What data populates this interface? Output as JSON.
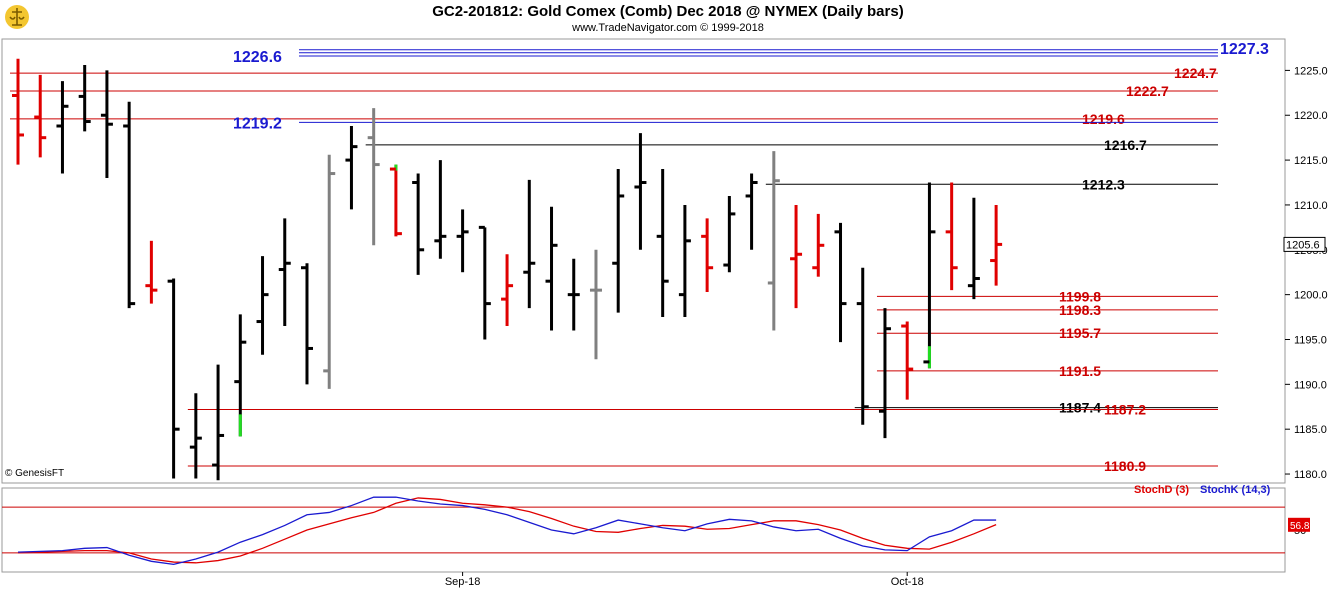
{
  "header": {
    "title": "GC2-201812:  Gold Comex (Comb) Dec 2018 @ NYMEX  (Daily bars)",
    "subtitle": "www.TradeNavigator.com © 1999-2018"
  },
  "credit": "© GenesisFT",
  "colors": {
    "up": "#000000",
    "down": "#e00000",
    "neutral": "#808080",
    "highlight": "#22dd22",
    "stochD": "#e00000",
    "stochK": "#1a1ad0",
    "level_red": "#cc0000",
    "level_blue": "#1a1ad0"
  },
  "chart_data": [
    {
      "type": "ohlc",
      "title": "GC2-201812:  Gold Comex (Comb) Dec 2018 @ NYMEX  (Daily bars)",
      "ylim": [
        1179,
        1228.5
      ],
      "y_ticks": [
        "1180.0",
        "1185.0",
        "1190.0",
        "1195.0",
        "1200.0",
        "1205.0",
        "1210.0",
        "1215.0",
        "1220.0",
        "1225.0"
      ],
      "x_labels": [
        {
          "label": "Sep-18",
          "bar": 20
        },
        {
          "label": "Oct-18",
          "bar": 40
        }
      ],
      "last_price": "1205.6",
      "bars": [
        {
          "o": 1222.2,
          "h": 1226.3,
          "l": 1214.5,
          "c": 1217.8,
          "color": "down"
        },
        {
          "o": 1219.8,
          "h": 1224.5,
          "l": 1215.3,
          "c": 1217.5,
          "color": "down"
        },
        {
          "o": 1218.8,
          "h": 1223.8,
          "l": 1213.5,
          "c": 1221.0,
          "color": "up"
        },
        {
          "o": 1222.1,
          "h": 1225.6,
          "l": 1218.2,
          "c": 1219.3,
          "color": "up"
        },
        {
          "o": 1220.0,
          "h": 1225.0,
          "l": 1213.0,
          "c": 1219.0,
          "color": "up"
        },
        {
          "o": 1218.8,
          "h": 1221.5,
          "l": 1198.5,
          "c": 1199.0,
          "color": "up"
        },
        {
          "o": 1201.0,
          "h": 1206.0,
          "l": 1199.0,
          "c": 1200.5,
          "color": "down"
        },
        {
          "o": 1201.5,
          "h": 1201.8,
          "l": 1179.5,
          "c": 1185.0,
          "color": "up"
        },
        {
          "o": 1183.0,
          "h": 1189.0,
          "l": 1179.5,
          "c": 1184.0,
          "color": "up"
        },
        {
          "o": 1181.0,
          "h": 1192.2,
          "l": 1179.3,
          "c": 1184.3,
          "color": "up"
        },
        {
          "o": 1190.3,
          "h": 1197.8,
          "l": 1184.2,
          "c": 1194.7,
          "color": "up",
          "low_color": "highlight"
        },
        {
          "o": 1197.0,
          "h": 1204.3,
          "l": 1193.3,
          "c": 1200.0,
          "color": "up"
        },
        {
          "o": 1202.8,
          "h": 1208.5,
          "l": 1196.5,
          "c": 1203.5,
          "color": "up"
        },
        {
          "o": 1203.0,
          "h": 1203.5,
          "l": 1190.0,
          "c": 1194.0,
          "color": "up"
        },
        {
          "o": 1191.5,
          "h": 1215.6,
          "l": 1189.5,
          "c": 1213.5,
          "color": "neutral"
        },
        {
          "o": 1215.0,
          "h": 1218.8,
          "l": 1209.5,
          "c": 1216.5,
          "color": "up"
        },
        {
          "o": 1217.5,
          "h": 1220.8,
          "l": 1205.5,
          "c": 1214.5,
          "color": "neutral"
        },
        {
          "o": 1214.0,
          "h": 1214.5,
          "l": 1206.5,
          "c": 1206.8,
          "color": "down",
          "high_color": "highlight"
        },
        {
          "o": 1212.5,
          "h": 1213.5,
          "l": 1202.2,
          "c": 1205.0,
          "color": "up"
        },
        {
          "o": 1206.0,
          "h": 1215.0,
          "l": 1204.0,
          "c": 1206.5,
          "color": "up"
        },
        {
          "o": 1206.5,
          "h": 1209.5,
          "l": 1202.5,
          "c": 1207.0,
          "color": "up"
        },
        {
          "o": 1207.5,
          "h": 1207.5,
          "l": 1195.0,
          "c": 1199.0,
          "color": "up"
        },
        {
          "o": 1199.5,
          "h": 1204.5,
          "l": 1196.5,
          "c": 1201.0,
          "color": "down"
        },
        {
          "o": 1202.5,
          "h": 1212.8,
          "l": 1198.5,
          "c": 1203.5,
          "color": "up"
        },
        {
          "o": 1201.5,
          "h": 1209.8,
          "l": 1196.0,
          "c": 1205.5,
          "color": "up"
        },
        {
          "o": 1200.0,
          "h": 1204.0,
          "l": 1196.0,
          "c": 1200.0,
          "color": "up"
        },
        {
          "o": 1200.5,
          "h": 1205.0,
          "l": 1192.8,
          "c": 1200.5,
          "color": "neutral"
        },
        {
          "o": 1203.5,
          "h": 1214.0,
          "l": 1198.0,
          "c": 1211.0,
          "color": "up"
        },
        {
          "o": 1212.0,
          "h": 1218.0,
          "l": 1205.0,
          "c": 1212.5,
          "color": "up"
        },
        {
          "o": 1206.5,
          "h": 1214.0,
          "l": 1197.5,
          "c": 1201.5,
          "color": "up"
        },
        {
          "o": 1200.0,
          "h": 1210.0,
          "l": 1197.5,
          "c": 1206.0,
          "color": "up"
        },
        {
          "o": 1206.5,
          "h": 1208.5,
          "l": 1200.3,
          "c": 1203.0,
          "color": "down"
        },
        {
          "o": 1203.3,
          "h": 1211.0,
          "l": 1202.5,
          "c": 1209.0,
          "color": "up"
        },
        {
          "o": 1211.0,
          "h": 1213.5,
          "l": 1205.0,
          "c": 1212.5,
          "color": "up"
        },
        {
          "o": 1201.3,
          "h": 1216.0,
          "l": 1196.0,
          "c": 1212.7,
          "color": "neutral"
        },
        {
          "o": 1204.0,
          "h": 1210.0,
          "l": 1198.5,
          "c": 1204.5,
          "color": "down"
        },
        {
          "o": 1203.0,
          "h": 1209.0,
          "l": 1202.0,
          "c": 1205.5,
          "color": "down"
        },
        {
          "o": 1207.0,
          "h": 1208.0,
          "l": 1194.7,
          "c": 1199.0,
          "color": "up"
        },
        {
          "o": 1199.0,
          "h": 1203.0,
          "l": 1185.5,
          "c": 1187.5,
          "color": "up"
        },
        {
          "o": 1187.0,
          "h": 1198.5,
          "l": 1184.0,
          "c": 1196.2,
          "color": "up"
        },
        {
          "o": 1196.5,
          "h": 1197.0,
          "l": 1188.3,
          "c": 1191.7,
          "color": "down"
        },
        {
          "o": 1192.5,
          "h": 1212.5,
          "l": 1191.8,
          "c": 1207.0,
          "color": "up",
          "low_color": "highlight"
        },
        {
          "o": 1207.0,
          "h": 1212.5,
          "l": 1200.5,
          "c": 1203.0,
          "color": "down"
        },
        {
          "o": 1201.0,
          "h": 1210.8,
          "l": 1199.5,
          "c": 1201.8,
          "color": "up"
        },
        {
          "o": 1203.8,
          "h": 1210.0,
          "l": 1201.0,
          "c": 1205.6,
          "color": "down"
        }
      ],
      "levels": [
        {
          "value": 1227.3,
          "label": "1227.3",
          "color": "blue",
          "start_bar": 13,
          "label_pos": "right-big",
          "double": true
        },
        {
          "value": 1226.6,
          "label": "1226.6",
          "color": "blue",
          "start_bar": 13,
          "label_pos": "left-big"
        },
        {
          "value": 1224.7,
          "label": "1224.7",
          "color": "red",
          "start_bar": 0,
          "label_pos": "right"
        },
        {
          "value": 1222.7,
          "label": "1222.7",
          "color": "red",
          "start_bar": 0,
          "label_pos": "right"
        },
        {
          "value": 1219.6,
          "label": "1219.6",
          "color": "red",
          "start_bar": 0,
          "label_pos": "right"
        },
        {
          "value": 1219.2,
          "label": "1219.2",
          "color": "blue",
          "start_bar": 13,
          "label_pos": "left-big"
        },
        {
          "value": 1216.7,
          "label": "1216.7",
          "color": "black",
          "start_bar": 16,
          "label_pos": "right"
        },
        {
          "value": 1212.3,
          "label": "1212.3",
          "color": "black",
          "start_bar": 34,
          "label_pos": "right"
        },
        {
          "value": 1199.8,
          "label": "1199.8",
          "color": "red",
          "start_bar": 39,
          "label_pos": "right"
        },
        {
          "value": 1198.3,
          "label": "1198.3",
          "color": "red",
          "start_bar": 39,
          "label_pos": "right"
        },
        {
          "value": 1195.7,
          "label": "1195.7",
          "color": "red",
          "start_bar": 39,
          "label_pos": "right"
        },
        {
          "value": 1191.5,
          "label": "1191.5",
          "color": "red",
          "start_bar": 39,
          "label_pos": "right"
        },
        {
          "value": 1187.4,
          "label": "1187.4",
          "color": "black",
          "start_bar": 38,
          "label_pos": "right"
        },
        {
          "value": 1187.2,
          "label": "1187.2",
          "color": "red",
          "start_bar": 8,
          "label_pos": "right"
        },
        {
          "value": 1180.9,
          "label": "1180.9",
          "color": "red",
          "start_bar": 8,
          "label_pos": "right"
        }
      ]
    },
    {
      "type": "line",
      "title": "",
      "ylim": [
        -5,
        105
      ],
      "y_ticks": [
        "50"
      ],
      "last_value": "56.81",
      "reference_lines": [
        80,
        20
      ],
      "series": [
        {
          "name": "StochD (3)",
          "color": "red",
          "values": [
            20,
            21,
            22,
            23,
            23,
            20,
            12,
            8,
            7,
            10,
            16,
            26,
            38,
            50,
            58,
            66,
            73,
            85,
            92,
            90,
            85,
            83,
            80,
            74,
            65,
            55,
            48,
            47,
            52,
            56,
            55,
            51,
            52,
            57,
            62,
            62,
            57,
            50,
            39,
            30,
            26,
            25,
            34,
            45,
            57
          ]
        },
        {
          "name": "StochK (14,3)",
          "color": "blue",
          "values": [
            21,
            22,
            23,
            26,
            27,
            17,
            9,
            5,
            12,
            21,
            34,
            44,
            56,
            70,
            73,
            82,
            93,
            93,
            88,
            84,
            82,
            77,
            70,
            60,
            50,
            45,
            53,
            63,
            58,
            53,
            49,
            58,
            64,
            62,
            54,
            49,
            51,
            39,
            29,
            24,
            23,
            41,
            49,
            63,
            63
          ]
        }
      ]
    }
  ]
}
